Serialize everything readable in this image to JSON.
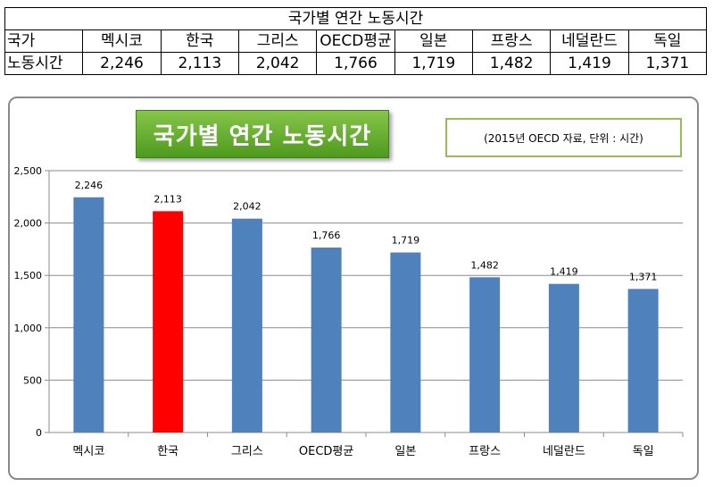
{
  "table": {
    "title": "국가별 연간 노동시간",
    "header_label": "국가",
    "row_label": "노동시간",
    "countries": [
      "멕시코",
      "한국",
      "그리스",
      "OECD평균",
      "일본",
      "프랑스",
      "네덜란드",
      "독일"
    ],
    "values": [
      "2,246",
      "2,113",
      "2,042",
      "1,766",
      "1,719",
      "1,482",
      "1,419",
      "1,371"
    ]
  },
  "chart_title": "국가별 연간 노동시간",
  "note": "(2015년 OECD 자료, 단위 : 시간)",
  "colors": {
    "bar": "#4f81bd",
    "highlight": "#ff0000",
    "title_green": "#6ab035"
  },
  "chart_data": {
    "type": "bar",
    "title": "국가별 연간 노동시간",
    "categories": [
      "멕시코",
      "한국",
      "그리스",
      "OECD평균",
      "일본",
      "프랑스",
      "네덜란드",
      "독일"
    ],
    "values": [
      2246,
      2113,
      2042,
      1766,
      1719,
      1482,
      1419,
      1371
    ],
    "highlight_category": "한국",
    "ylim": [
      0,
      2500
    ],
    "yticks": [
      0,
      500,
      1000,
      1500,
      2000,
      2500
    ],
    "grid": true,
    "legend": "none",
    "xlabel": "",
    "ylabel": ""
  }
}
